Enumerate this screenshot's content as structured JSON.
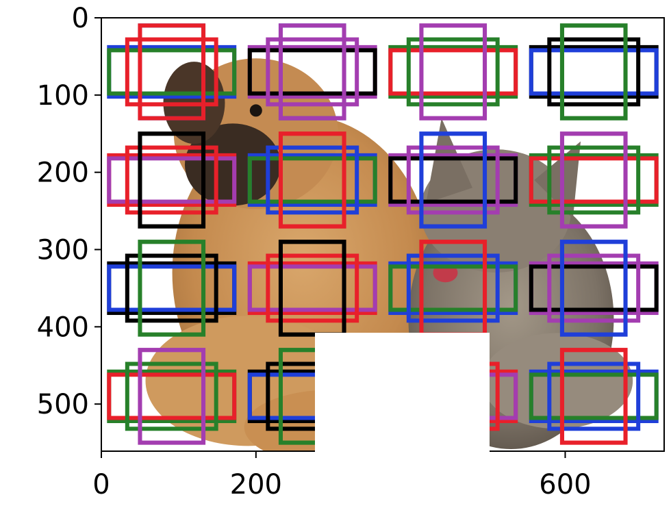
{
  "chart_data": {
    "type": "image-with-anchor-boxes",
    "title": "",
    "xlabel": "",
    "ylabel": "",
    "xlim": [
      0,
      728
    ],
    "ylim": [
      561,
      0
    ],
    "x_ticks": [
      {
        "value": 0,
        "label": "0"
      },
      {
        "value": 200,
        "label": "200"
      },
      {
        "value": 400,
        "label": "400"
      },
      {
        "value": 600,
        "label": "600"
      }
    ],
    "y_ticks": [
      {
        "value": 0,
        "label": "0"
      },
      {
        "value": 100,
        "label": "100"
      },
      {
        "value": 200,
        "label": "200"
      },
      {
        "value": 300,
        "label": "300"
      },
      {
        "value": 400,
        "label": "400"
      },
      {
        "value": 500,
        "label": "500"
      }
    ],
    "background_image": "photo of a tan puppy and a tabby kitten on white background",
    "anchor_grid": {
      "centers_x": [
        91,
        273,
        455,
        637
      ],
      "centers_y": [
        70,
        210,
        350,
        490
      ],
      "shapes": [
        {
          "name": "wide-A",
          "w": 162,
          "h": 64
        },
        {
          "name": "wide-B",
          "w": 162,
          "h": 56
        },
        {
          "name": "square",
          "w": 115,
          "h": 84
        },
        {
          "name": "tall-A",
          "w": 82,
          "h": 120
        },
        {
          "name": "tall-B",
          "w": 82,
          "h": 120
        }
      ],
      "cells": [
        {
          "row": 0,
          "col": 0,
          "colors": [
            "#1f3fd9",
            "#27802a",
            "#e8202a",
            "#1f3fd9",
            "#e8202a"
          ]
        },
        {
          "row": 0,
          "col": 1,
          "colors": [
            "#a33db0",
            "#000000",
            "#a33db0",
            "#1f3fd9",
            "#a33db0"
          ]
        },
        {
          "row": 0,
          "col": 2,
          "colors": [
            "#27802a",
            "#e8202a",
            "#27802a",
            "#a33db0",
            "#a33db0"
          ]
        },
        {
          "row": 0,
          "col": 3,
          "colors": [
            "#000000",
            "#1f3fd9",
            "#000000",
            "#27802a",
            "#27802a"
          ]
        },
        {
          "row": 1,
          "col": 0,
          "colors": [
            "#e8202a",
            "#a33db0",
            "#e8202a",
            "#000000",
            "#000000"
          ]
        },
        {
          "row": 1,
          "col": 1,
          "colors": [
            "#1f3fd9",
            "#27802a",
            "#1f3fd9",
            "#e8202a",
            "#e8202a"
          ]
        },
        {
          "row": 1,
          "col": 2,
          "colors": [
            "#a33db0",
            "#000000",
            "#a33db0",
            "#1f3fd9",
            "#1f3fd9"
          ]
        },
        {
          "row": 1,
          "col": 3,
          "colors": [
            "#27802a",
            "#e8202a",
            "#27802a",
            "#a33db0",
            "#a33db0"
          ]
        },
        {
          "row": 2,
          "col": 0,
          "colors": [
            "#000000",
            "#1f3fd9",
            "#000000",
            "#27802a",
            "#27802a"
          ]
        },
        {
          "row": 2,
          "col": 1,
          "colors": [
            "#e8202a",
            "#a33db0",
            "#e8202a",
            "#000000",
            "#000000"
          ]
        },
        {
          "row": 2,
          "col": 2,
          "colors": [
            "#1f3fd9",
            "#27802a",
            "#1f3fd9",
            "#e8202a",
            "#e8202a"
          ]
        },
        {
          "row": 2,
          "col": 3,
          "colors": [
            "#a33db0",
            "#000000",
            "#a33db0",
            "#1f3fd9",
            "#1f3fd9"
          ]
        },
        {
          "row": 3,
          "col": 0,
          "colors": [
            "#27802a",
            "#e8202a",
            "#27802a",
            "#a33db0",
            "#a33db0"
          ]
        },
        {
          "row": 3,
          "col": 1,
          "colors": [
            "#000000",
            "#1f3fd9",
            "#000000",
            "#27802a",
            "#27802a"
          ]
        },
        {
          "row": 3,
          "col": 2,
          "colors": [
            "#e8202a",
            "#a33db0",
            "#e8202a",
            "#000000",
            "#000000"
          ]
        },
        {
          "row": 3,
          "col": 3,
          "colors": [
            "#1f3fd9",
            "#27802a",
            "#1f3fd9",
            "#e8202a",
            "#e8202a"
          ]
        }
      ]
    }
  }
}
